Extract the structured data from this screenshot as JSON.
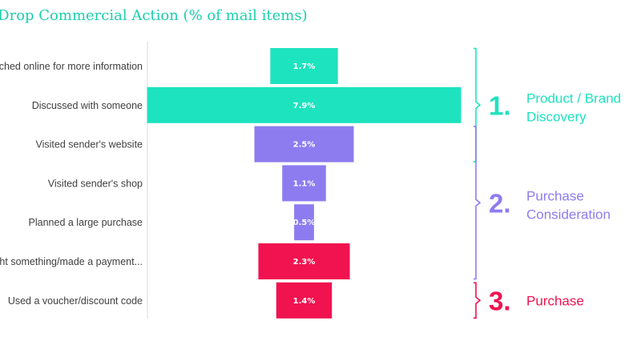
{
  "title": "or Drop Commercial Action (% of mail items)",
  "chart_data": {
    "type": "bar",
    "orientation": "horizontal-funnel",
    "title": "or Drop Commercial Action (% of mail items)",
    "categories": [
      "arched online for more information",
      "Discussed with someone",
      "Visited sender's website",
      "Visited sender's shop",
      "Planned a large  purchase",
      "ght something/made a payment...",
      "Used a voucher/discount code"
    ],
    "values": [
      1.7,
      7.9,
      2.5,
      1.1,
      0.5,
      2.3,
      1.4
    ],
    "value_labels": [
      "1.7%",
      "7.9%",
      "2.5%",
      "1.1%",
      "0.5%",
      "2.3%",
      "1.4%"
    ],
    "bar_colors": [
      "#1de3bf",
      "#1de3bf",
      "#8d7cf0",
      "#8d7cf0",
      "#8d7cf0",
      "#f0134f",
      "#f0134f"
    ],
    "xlim": [
      0,
      7.9
    ],
    "grid": false,
    "legend": "none"
  },
  "stages": [
    {
      "number": "1.",
      "line1": "Product / Brand",
      "line2": "Discovery",
      "color": "#1de3bf",
      "from": 0,
      "to": 2
    },
    {
      "number": "2.",
      "line1": "Purchase",
      "line2": "Consideration",
      "color": "#8d7cf0",
      "from": 2,
      "to": 5
    },
    {
      "number": "3.",
      "line1": "Purchase",
      "line2": "",
      "color": "#f0134f",
      "from": 6,
      "to": 6
    }
  ]
}
